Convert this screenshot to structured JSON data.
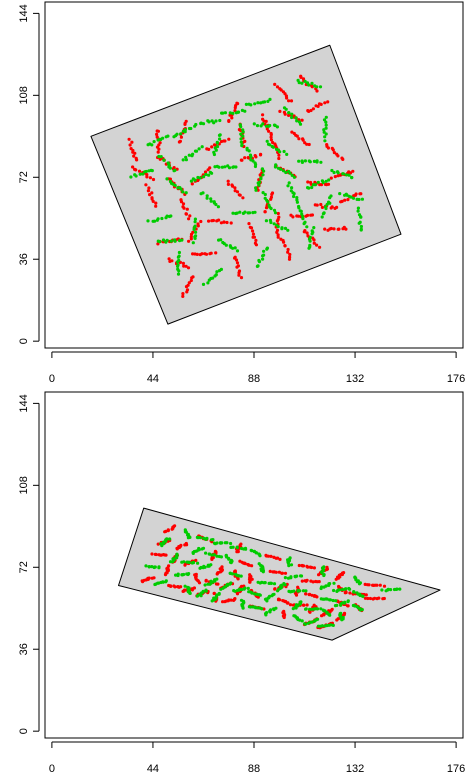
{
  "chart_data": [
    {
      "type": "scatter",
      "title": "",
      "xlabel": "",
      "ylabel": "",
      "x_ticks": [
        0,
        44,
        88,
        132,
        176
      ],
      "y_ticks": [
        0,
        36,
        72,
        108,
        144
      ],
      "xlim": [
        -3,
        179
      ],
      "ylim": [
        149,
        -3
      ],
      "y_reversed": true,
      "grid": false,
      "legend": "none",
      "background": "#ffffff",
      "field_fill": "#d3d3d3",
      "field_outline": [
        [
          50.5,
          7.5
        ],
        [
          152,
          47
        ],
        [
          121,
          130
        ],
        [
          17,
          90
        ]
      ],
      "series": [
        {
          "color": "#ff0000",
          "generator": "plot_rows_rotated",
          "seed": 11
        },
        {
          "color": "#00cc00",
          "generator": "plot_rows_rotated",
          "seed": 23
        }
      ]
    },
    {
      "type": "scatter",
      "title": "",
      "xlabel": "",
      "ylabel": "",
      "x_ticks": [
        0,
        44,
        88,
        132,
        176
      ],
      "y_ticks": [
        0,
        36,
        72,
        108,
        144
      ],
      "xlim": [
        -3,
        179
      ],
      "ylim": [
        149,
        -3
      ],
      "y_reversed": true,
      "grid": false,
      "legend": "none",
      "background": "#ffffff",
      "field_fill": "#d3d3d3",
      "field_outline": [
        [
          29,
          64
        ],
        [
          122,
          40
        ],
        [
          169,
          62
        ],
        [
          40,
          98
        ]
      ],
      "series": [
        {
          "color": "#ff0000",
          "generator": "plot_rows_flat",
          "seed": 37
        },
        {
          "color": "#00cc00",
          "generator": "plot_rows_flat",
          "seed": 53
        }
      ]
    }
  ]
}
